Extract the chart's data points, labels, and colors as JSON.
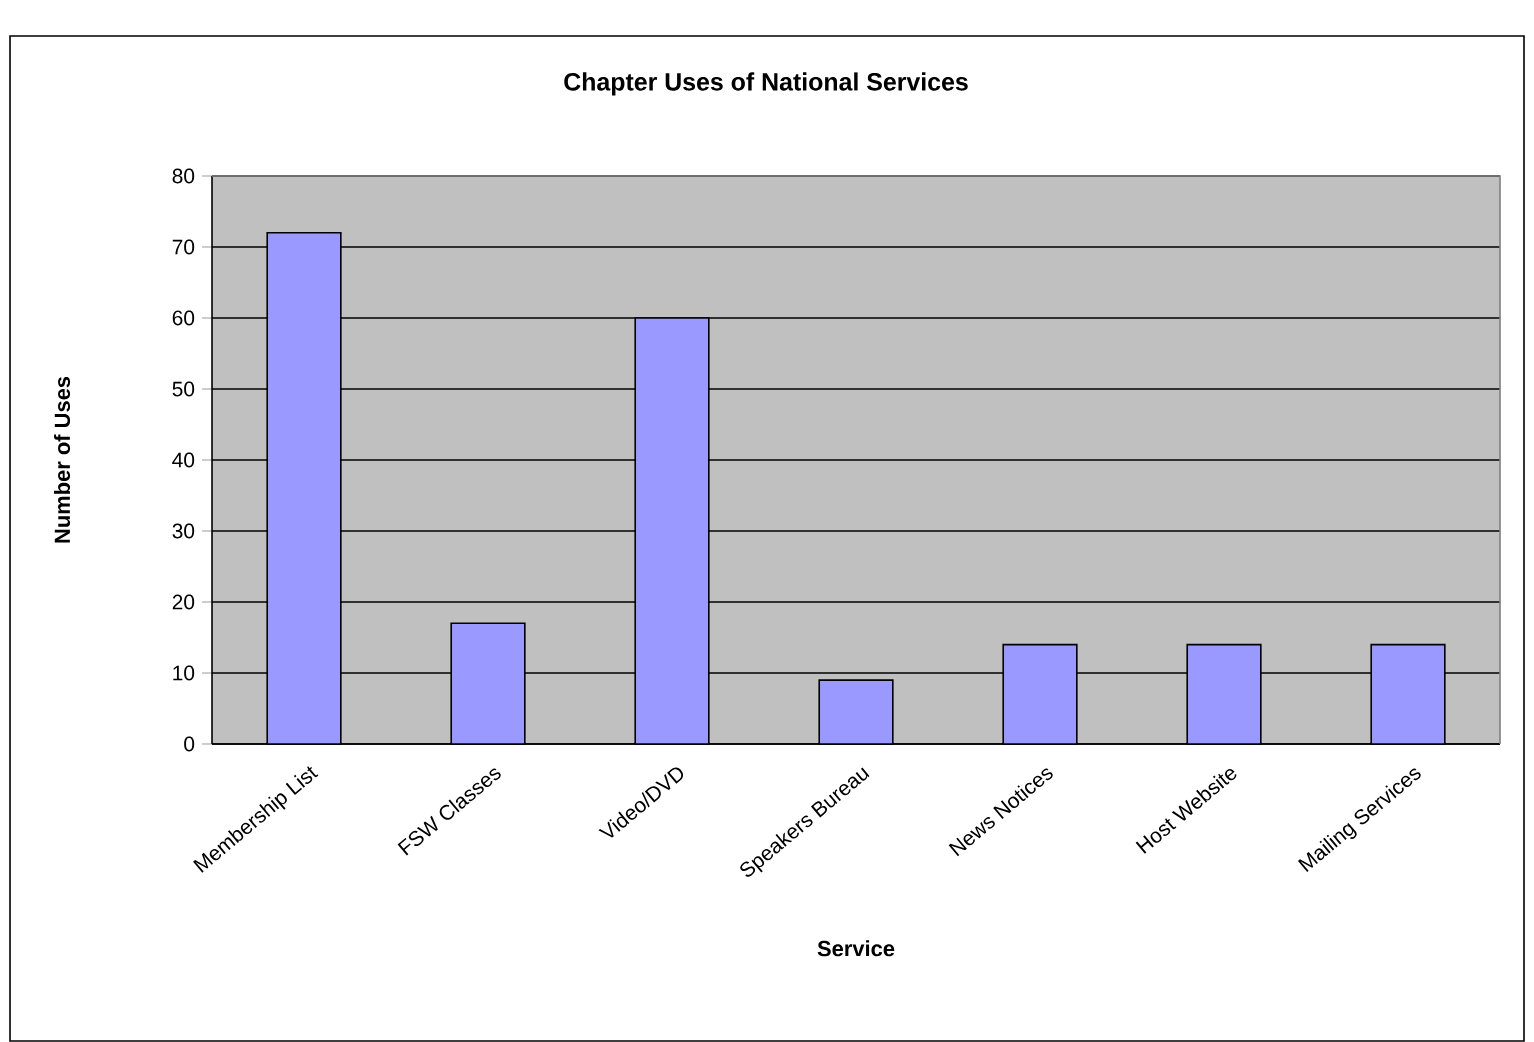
{
  "chart_data": {
    "type": "bar",
    "title": "Chapter Uses of  National Services",
    "xlabel": "Service",
    "ylabel": "Number of Uses",
    "categories": [
      "Membership List",
      "FSW Classes",
      "Video/DVD",
      "Speakers Bureau",
      "News Notices",
      "Host Website",
      "Mailing Services"
    ],
    "values": [
      72,
      17,
      60,
      9,
      14,
      14,
      14
    ],
    "color": "#9999ff",
    "ylim": [
      0,
      80
    ],
    "yticks": [
      0,
      10,
      20,
      30,
      40,
      50,
      60,
      70,
      80
    ],
    "grid": "y"
  }
}
